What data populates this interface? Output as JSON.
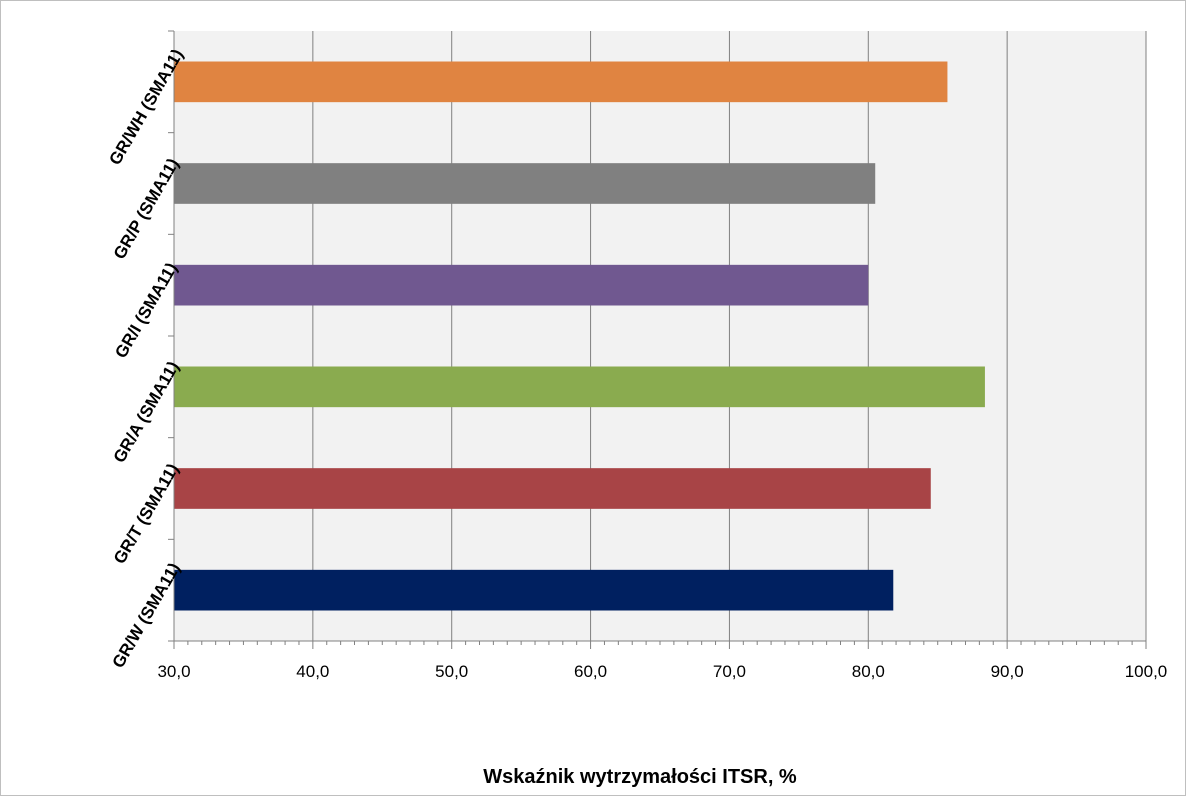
{
  "chart_data": {
    "type": "bar",
    "orientation": "horizontal",
    "title": "",
    "xlabel": "Wskaźnik wytrzymałości ITSR, %",
    "ylabel": "",
    "xlim": [
      30,
      100
    ],
    "x_major_step": 10,
    "x_minor_step": 1,
    "grid": "vertical-major",
    "legend": "none",
    "tick_labels": [
      "30,0",
      "40,0",
      "50,0",
      "60,0",
      "70,0",
      "80,0",
      "90,0",
      "100,0"
    ],
    "categories": [
      "GR/W (SMA11)",
      "GR/T (SMA11)",
      "GR/A (SMA11)",
      "GR/I (SMA11)",
      "GR/P (SMA11)",
      "GR/WH (SMA11)"
    ],
    "values": [
      81.8,
      84.5,
      88.4,
      80.0,
      80.5,
      85.7
    ],
    "colors": [
      "#002060",
      "#a84446",
      "#8aab4f",
      "#705890",
      "#808080",
      "#e08441"
    ],
    "plot_background": "#f2f2f2",
    "grid_color": "#808080"
  }
}
